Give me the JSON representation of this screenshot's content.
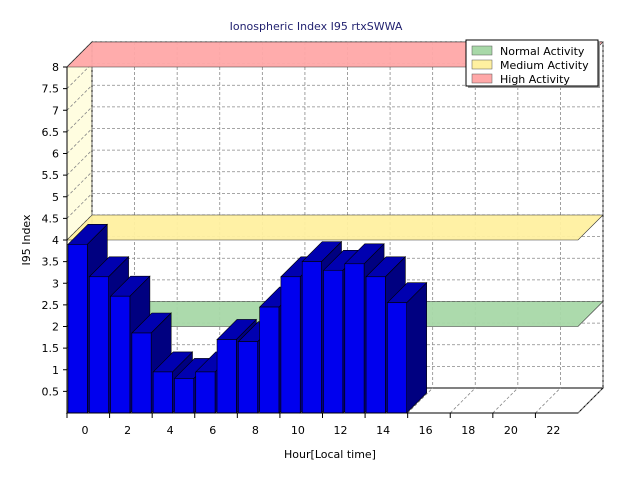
{
  "chart_data": {
    "type": "bar",
    "title": "Ionospheric Index I95 rtxSWWA",
    "xlabel": "Hour[Local time]",
    "ylabel": "I95 Index",
    "xlim": [
      0,
      24
    ],
    "ylim": [
      0,
      8
    ],
    "x_ticks": [
      0,
      2,
      4,
      6,
      8,
      10,
      12,
      14,
      16,
      18,
      20,
      22
    ],
    "y_ticks": [
      0.5,
      1,
      1.5,
      2,
      2.5,
      3,
      3.5,
      4,
      4.5,
      5,
      5.5,
      6,
      6.5,
      7,
      7.5,
      8
    ],
    "grid": true,
    "legend_position": "top-right",
    "series": [
      {
        "name": "I95",
        "color": "#0000ee",
        "x": [
          0,
          1,
          2,
          3,
          4,
          5,
          6,
          7,
          8,
          9,
          10,
          11,
          12,
          13,
          14,
          15
        ],
        "values": [
          3.9,
          3.15,
          2.7,
          1.85,
          0.95,
          0.8,
          0.95,
          1.7,
          1.65,
          2.45,
          3.15,
          3.5,
          3.3,
          3.45,
          3.15,
          2.55
        ]
      }
    ],
    "bands": [
      {
        "name": "Normal Activity",
        "from": 2.0,
        "to": 2.0,
        "color": "#a8d8a8"
      },
      {
        "name": "Medium Activity",
        "from": 4.0,
        "to": 4.0,
        "color": "#fff0a0"
      },
      {
        "name": "High Activity",
        "from": 8.0,
        "to": 8.0,
        "color": "#ffa8a8"
      }
    ]
  }
}
